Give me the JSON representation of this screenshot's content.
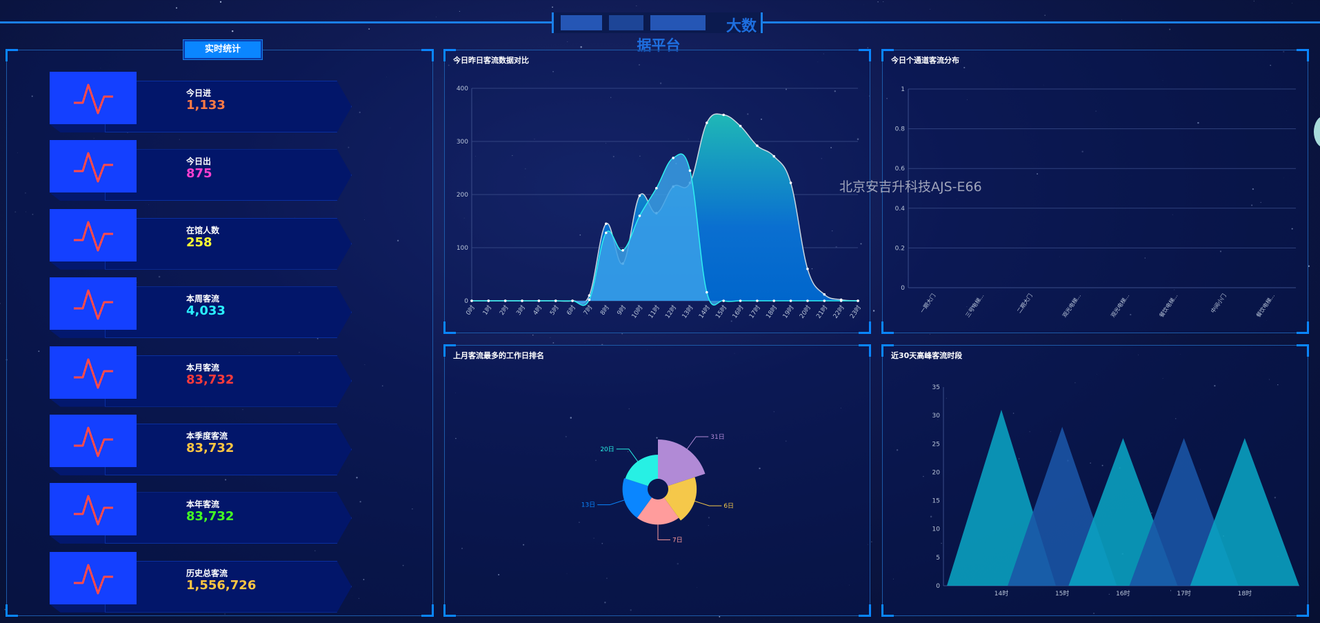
{
  "header": {
    "title_line1_visible": "大数",
    "title_line2": "据平台"
  },
  "watermark": "北京安吉升科技AJS-E66",
  "left_panel": {
    "button": "实时统计",
    "cards": [
      {
        "label": "今日进",
        "value": "1,133",
        "color": "#ff7a45"
      },
      {
        "label": "今日出",
        "value": "875",
        "color": "#ff3fd0"
      },
      {
        "label": "在馆人数",
        "value": "258",
        "color": "#ffff33"
      },
      {
        "label": "本周客流",
        "value": "4,033",
        "color": "#2af0ff"
      },
      {
        "label": "本月客流",
        "value": "83,732",
        "color": "#ff3b3b"
      },
      {
        "label": "本季度客流",
        "value": "83,732",
        "color": "#ffc642"
      },
      {
        "label": "本年客流",
        "value": "83,732",
        "color": "#44ff22"
      },
      {
        "label": "历史总客流",
        "value": "1,556,726",
        "color": "#ffc642"
      }
    ],
    "card_icon": "pulse-icon"
  },
  "chart_data": [
    {
      "id": "hourly",
      "type": "area",
      "title": "今日昨日客流数据对比",
      "categories": [
        "0时",
        "1时",
        "2时",
        "3时",
        "4时",
        "5时",
        "6时",
        "7时",
        "8时",
        "9时",
        "10时",
        "11时",
        "12时",
        "13时",
        "14时",
        "15时",
        "16时",
        "17时",
        "18时",
        "19时",
        "20时",
        "21时",
        "22时",
        "23时"
      ],
      "series": [
        {
          "values": [
            0,
            0,
            0,
            0,
            0,
            0,
            0,
            10,
            145,
            70,
            198,
            165,
            215,
            222,
            335,
            350,
            329,
            292,
            272,
            222,
            60,
            12,
            2,
            0
          ],
          "color": "#c9d6e0"
        },
        {
          "values": [
            0,
            0,
            0,
            0,
            0,
            0,
            0,
            2,
            128,
            95,
            160,
            212,
            269,
            245,
            16,
            0,
            0,
            0,
            0,
            0,
            0,
            0,
            0,
            0
          ],
          "color": "#2ef0f0"
        }
      ],
      "yticks": [
        "0",
        "100",
        "200",
        "300",
        "400"
      ],
      "ylim": [
        0,
        400
      ],
      "grid": true
    },
    {
      "id": "channels",
      "type": "bar",
      "title": "今日个通道客流分布",
      "categories": [
        "一期大门",
        "三号电梯...",
        "二期大门",
        "观光电梯...",
        "观光电梯...",
        "餐饮电梯...",
        "中间小门",
        "餐饮电梯..."
      ],
      "values": [
        0,
        0,
        0,
        0,
        0,
        0,
        0,
        0
      ],
      "yticks": [
        "0",
        "0.2",
        "0.4",
        "0.6",
        "0.8",
        "1"
      ],
      "ylim": [
        0,
        1
      ],
      "grid": true
    },
    {
      "id": "rose",
      "type": "pie",
      "title": "上月客流最多的工作日排名",
      "rose": true,
      "slices": [
        {
          "label": "31日",
          "value": 72,
          "color": "#b18ad6"
        },
        {
          "label": "6日",
          "value": 52,
          "color": "#f5c84a"
        },
        {
          "label": "7日",
          "value": 46,
          "color": "#ff9c9c"
        },
        {
          "label": "13日",
          "value": 46,
          "color": "#0a86ff"
        },
        {
          "label": "20日",
          "value": 44,
          "color": "#27f0e4"
        }
      ]
    },
    {
      "id": "peak",
      "type": "bar",
      "title": "近30天高峰客流时段",
      "bar_shape": "triangle",
      "categories": [
        "14时",
        "15时",
        "16时",
        "17时",
        "18时"
      ],
      "values": [
        31,
        28,
        26,
        26,
        26
      ],
      "colors": [
        "#0aa3c2",
        "#1a55a6"
      ],
      "yticks": [
        "0",
        "5",
        "10",
        "15",
        "20",
        "25",
        "30",
        "35"
      ],
      "ylim": [
        0,
        35
      ],
      "grid": false
    }
  ]
}
